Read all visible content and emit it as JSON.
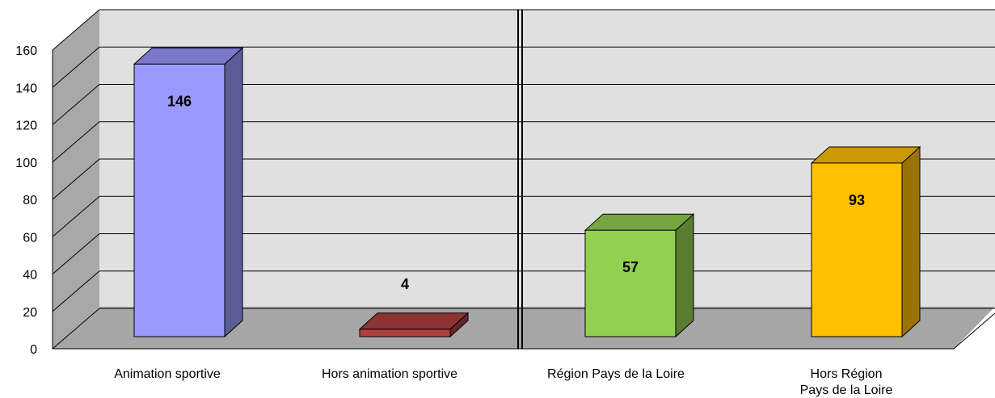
{
  "chart_data": {
    "type": "bar3d",
    "categories": [
      "Animation sportive",
      "Hors animation sportive",
      "Région Pays de la Loire",
      "Hors Région\nPays de la Loire"
    ],
    "values": [
      146,
      4,
      57,
      93
    ],
    "colors": [
      "#9999ff",
      "#b04040",
      "#92d050",
      "#ffc000"
    ],
    "ylim": [
      0,
      160
    ],
    "yticks": [
      0,
      20,
      40,
      60,
      80,
      100,
      120,
      140,
      160
    ],
    "grid": true
  }
}
